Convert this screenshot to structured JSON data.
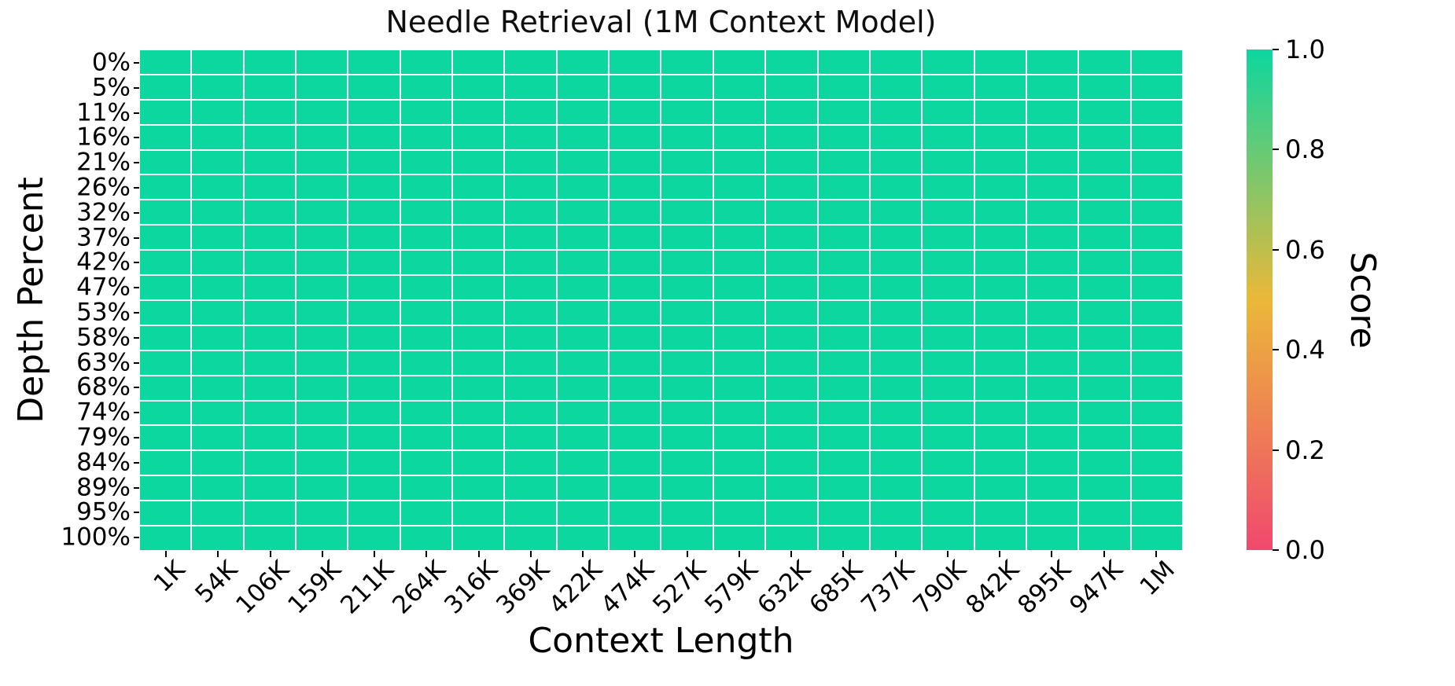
{
  "chart_data": {
    "type": "heatmap",
    "title": "Needle Retrieval (1M Context Model)",
    "xlabel": "Context Length",
    "ylabel": "Depth Percent",
    "x_categories": [
      "1K",
      "54K",
      "106K",
      "159K",
      "211K",
      "264K",
      "316K",
      "369K",
      "422K",
      "474K",
      "527K",
      "579K",
      "632K",
      "685K",
      "737K",
      "790K",
      "842K",
      "895K",
      "947K",
      "1M"
    ],
    "y_categories": [
      "0%",
      "5%",
      "11%",
      "16%",
      "21%",
      "26%",
      "32%",
      "37%",
      "42%",
      "47%",
      "53%",
      "58%",
      "63%",
      "68%",
      "74%",
      "79%",
      "84%",
      "89%",
      "95%",
      "100%"
    ],
    "values": [
      [
        1.0,
        1.0,
        1.0,
        1.0,
        1.0,
        1.0,
        1.0,
        1.0,
        1.0,
        1.0,
        1.0,
        1.0,
        1.0,
        1.0,
        1.0,
        1.0,
        1.0,
        1.0,
        1.0,
        1.0
      ],
      [
        1.0,
        1.0,
        1.0,
        1.0,
        1.0,
        1.0,
        1.0,
        1.0,
        1.0,
        1.0,
        1.0,
        1.0,
        1.0,
        1.0,
        1.0,
        1.0,
        1.0,
        1.0,
        1.0,
        1.0
      ],
      [
        1.0,
        1.0,
        1.0,
        1.0,
        1.0,
        1.0,
        1.0,
        1.0,
        1.0,
        1.0,
        1.0,
        1.0,
        1.0,
        1.0,
        1.0,
        1.0,
        1.0,
        1.0,
        1.0,
        1.0
      ],
      [
        1.0,
        1.0,
        1.0,
        1.0,
        1.0,
        1.0,
        1.0,
        1.0,
        1.0,
        1.0,
        1.0,
        1.0,
        1.0,
        1.0,
        1.0,
        1.0,
        1.0,
        1.0,
        1.0,
        1.0
      ],
      [
        1.0,
        1.0,
        1.0,
        1.0,
        1.0,
        1.0,
        1.0,
        1.0,
        1.0,
        1.0,
        1.0,
        1.0,
        1.0,
        1.0,
        1.0,
        1.0,
        1.0,
        1.0,
        1.0,
        1.0
      ],
      [
        1.0,
        1.0,
        1.0,
        1.0,
        1.0,
        1.0,
        1.0,
        1.0,
        1.0,
        1.0,
        1.0,
        1.0,
        1.0,
        1.0,
        1.0,
        1.0,
        1.0,
        1.0,
        1.0,
        1.0
      ],
      [
        1.0,
        1.0,
        1.0,
        1.0,
        1.0,
        1.0,
        1.0,
        1.0,
        1.0,
        1.0,
        1.0,
        1.0,
        1.0,
        1.0,
        1.0,
        1.0,
        1.0,
        1.0,
        1.0,
        1.0
      ],
      [
        1.0,
        1.0,
        1.0,
        1.0,
        1.0,
        1.0,
        1.0,
        1.0,
        1.0,
        1.0,
        1.0,
        1.0,
        1.0,
        1.0,
        1.0,
        1.0,
        1.0,
        1.0,
        1.0,
        1.0
      ],
      [
        1.0,
        1.0,
        1.0,
        1.0,
        1.0,
        1.0,
        1.0,
        1.0,
        1.0,
        1.0,
        1.0,
        1.0,
        1.0,
        1.0,
        1.0,
        1.0,
        1.0,
        1.0,
        1.0,
        1.0
      ],
      [
        1.0,
        1.0,
        1.0,
        1.0,
        1.0,
        1.0,
        1.0,
        1.0,
        1.0,
        1.0,
        1.0,
        1.0,
        1.0,
        1.0,
        1.0,
        1.0,
        1.0,
        1.0,
        1.0,
        1.0
      ],
      [
        1.0,
        1.0,
        1.0,
        1.0,
        1.0,
        1.0,
        1.0,
        1.0,
        1.0,
        1.0,
        1.0,
        1.0,
        1.0,
        1.0,
        1.0,
        1.0,
        1.0,
        1.0,
        1.0,
        1.0
      ],
      [
        1.0,
        1.0,
        1.0,
        1.0,
        1.0,
        1.0,
        1.0,
        1.0,
        1.0,
        1.0,
        1.0,
        1.0,
        1.0,
        1.0,
        1.0,
        1.0,
        1.0,
        1.0,
        1.0,
        1.0
      ],
      [
        1.0,
        1.0,
        1.0,
        1.0,
        1.0,
        1.0,
        1.0,
        1.0,
        1.0,
        1.0,
        1.0,
        1.0,
        1.0,
        1.0,
        1.0,
        1.0,
        1.0,
        1.0,
        1.0,
        1.0
      ],
      [
        1.0,
        1.0,
        1.0,
        1.0,
        1.0,
        1.0,
        1.0,
        1.0,
        1.0,
        1.0,
        1.0,
        1.0,
        1.0,
        1.0,
        1.0,
        1.0,
        1.0,
        1.0,
        1.0,
        1.0
      ],
      [
        1.0,
        1.0,
        1.0,
        1.0,
        1.0,
        1.0,
        1.0,
        1.0,
        1.0,
        1.0,
        1.0,
        1.0,
        1.0,
        1.0,
        1.0,
        1.0,
        1.0,
        1.0,
        1.0,
        1.0
      ],
      [
        1.0,
        1.0,
        1.0,
        1.0,
        1.0,
        1.0,
        1.0,
        1.0,
        1.0,
        1.0,
        1.0,
        1.0,
        1.0,
        1.0,
        1.0,
        1.0,
        1.0,
        1.0,
        1.0,
        1.0
      ],
      [
        1.0,
        1.0,
        1.0,
        1.0,
        1.0,
        1.0,
        1.0,
        1.0,
        1.0,
        1.0,
        1.0,
        1.0,
        1.0,
        1.0,
        1.0,
        1.0,
        1.0,
        1.0,
        1.0,
        1.0
      ],
      [
        1.0,
        1.0,
        1.0,
        1.0,
        1.0,
        1.0,
        1.0,
        1.0,
        1.0,
        1.0,
        1.0,
        1.0,
        1.0,
        1.0,
        1.0,
        1.0,
        1.0,
        1.0,
        1.0,
        1.0
      ],
      [
        1.0,
        1.0,
        1.0,
        1.0,
        1.0,
        1.0,
        1.0,
        1.0,
        1.0,
        1.0,
        1.0,
        1.0,
        1.0,
        1.0,
        1.0,
        1.0,
        1.0,
        1.0,
        1.0,
        1.0
      ],
      [
        1.0,
        1.0,
        1.0,
        1.0,
        1.0,
        1.0,
        1.0,
        1.0,
        1.0,
        1.0,
        1.0,
        1.0,
        1.0,
        1.0,
        1.0,
        1.0,
        1.0,
        1.0,
        1.0,
        1.0
      ]
    ],
    "colorbar": {
      "label": "Score",
      "min": 0.0,
      "max": 1.0,
      "ticks": [
        1.0,
        0.8,
        0.6,
        0.4,
        0.2,
        0.0
      ],
      "tick_labels": [
        "1.0",
        "0.8",
        "0.6",
        "0.4",
        "0.2",
        "0.0"
      ],
      "colormap_stops": [
        {
          "pos": 0.0,
          "color": "#F0496E"
        },
        {
          "pos": 0.5,
          "color": "#EBB839"
        },
        {
          "pos": 1.0,
          "color": "#0CD79F"
        }
      ]
    },
    "grid_line_color": "#FFFFFF",
    "cell_color_at_score_1": "#0CD79F",
    "text_color": "#000000",
    "background": "#FFFFFF",
    "legend_position": "right-colorbar",
    "grid": "white-cell-separators"
  }
}
